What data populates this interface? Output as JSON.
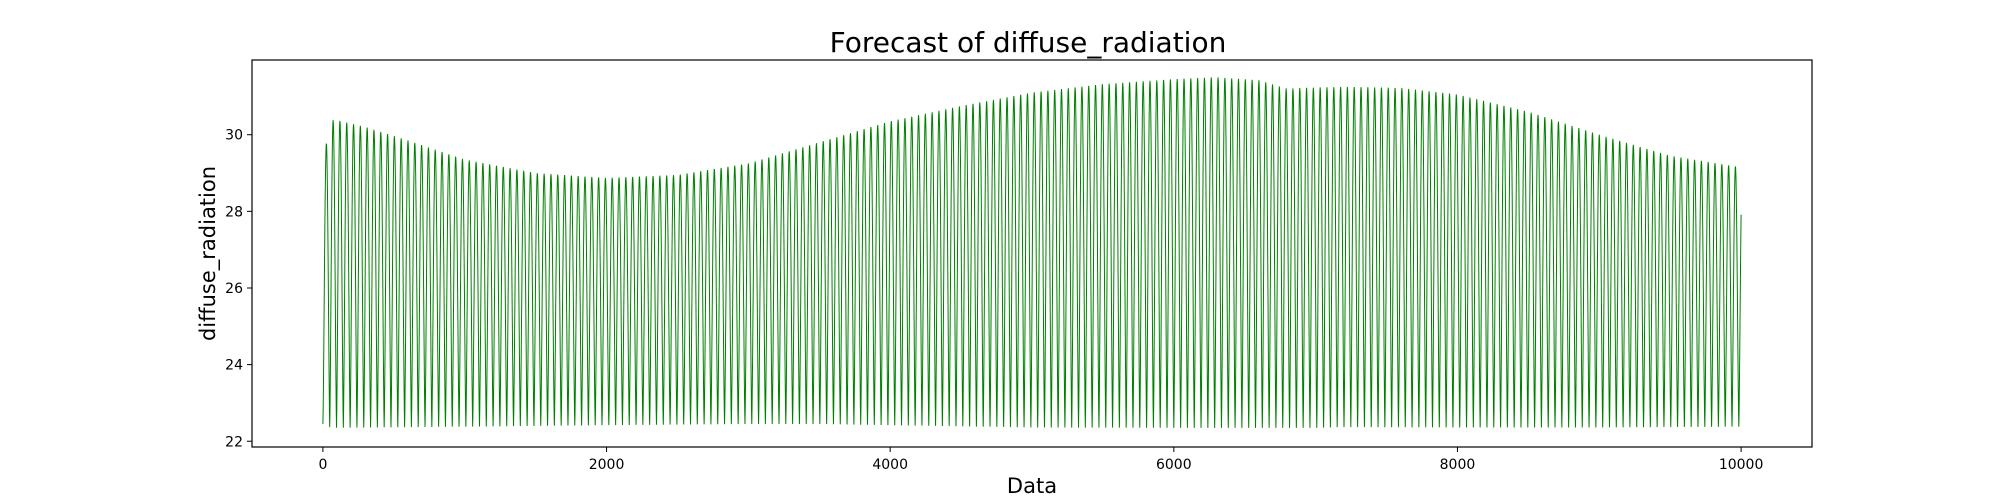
{
  "chart_data": {
    "type": "line",
    "title": "Forecast of diffuse_radiation",
    "xlabel": "Data",
    "ylabel": "diffuse_radiation",
    "xlim": [
      -500,
      10500
    ],
    "ylim": [
      21.85,
      31.95
    ],
    "xticks": [
      0,
      2000,
      4000,
      6000,
      8000,
      10000
    ],
    "yticks": [
      22,
      24,
      26,
      28,
      30
    ],
    "grid": false,
    "legend": "none",
    "line_color": "#008000",
    "series": [
      {
        "x_start": 0,
        "x_end": 10000,
        "period": 48,
        "upper_envelope": {
          "x": [
            0,
            20,
            60,
            100,
            300,
            600,
            1000,
            1500,
            2000,
            2500,
            3000,
            3500,
            4000,
            4500,
            5000,
            5500,
            6000,
            6300,
            6600,
            6800,
            6900,
            7200,
            7600,
            8000,
            8500,
            9000,
            9500,
            10000
          ],
          "y": [
            29.7,
            29.7,
            30.38,
            30.38,
            30.2,
            29.85,
            29.35,
            29.0,
            28.87,
            28.95,
            29.25,
            29.8,
            30.35,
            30.75,
            31.1,
            31.32,
            31.45,
            31.5,
            31.42,
            31.2,
            31.22,
            31.25,
            31.22,
            31.05,
            30.6,
            30.0,
            29.45,
            29.15
          ]
        },
        "lower_envelope": {
          "x": [
            0,
            60,
            1000,
            2000,
            3000,
            3500,
            4000,
            5000,
            6000,
            7000,
            7200,
            8000,
            9000,
            10000
          ],
          "y": [
            22.45,
            22.35,
            22.38,
            22.42,
            22.45,
            22.45,
            22.42,
            22.36,
            22.35,
            22.35,
            22.37,
            22.36,
            22.36,
            22.38
          ]
        }
      }
    ]
  }
}
